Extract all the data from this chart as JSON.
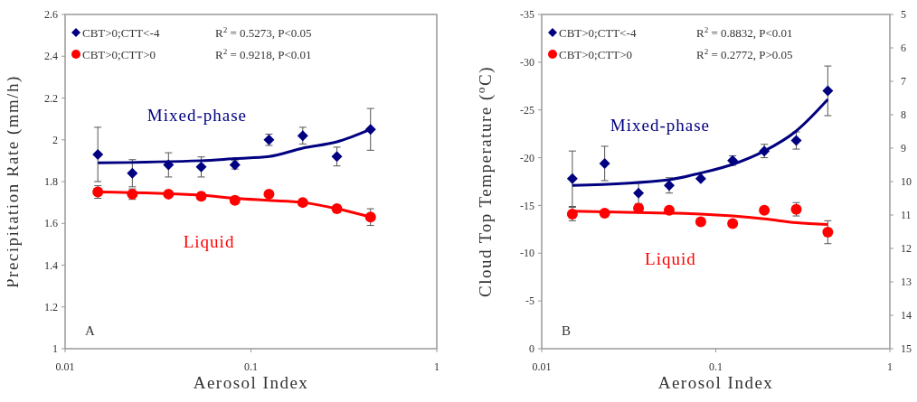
{
  "chart_data": [
    {
      "type": "scatter",
      "xlabel": "Aerosol Index",
      "ylabel": "Precipitation Rate (mm/h)",
      "log": "x",
      "xlim": [
        0.01,
        1
      ],
      "xticks": [
        0.01,
        0.1,
        1
      ],
      "ylim": [
        1,
        2.6
      ],
      "yticks": [
        1,
        1.2,
        1.4,
        1.6,
        1.8,
        2,
        2.2,
        2.4,
        2.6
      ],
      "legend": "top left",
      "annotations": [
        "R$^{2}$ = 0.5273, P<0.05",
        "R$^{2}$ = 0.9218, P<0.01",
        "A",
        "Mixed-phase",
        "Liquid"
      ],
      "series": [
        {
          "name": "CBT>0;CTT<-4",
          "type": "scatter",
          "marker": "diamond",
          "color": "#000080",
          "x": [
            0.015,
            0.023,
            0.036,
            0.054,
            0.082,
            0.125,
            0.19,
            0.29,
            0.44
          ],
          "values": [
            1.93,
            1.84,
            1.88,
            1.87,
            1.88,
            2.0,
            2.02,
            1.92,
            2.05
          ],
          "errors": [
            0.13,
            0.065,
            0.058,
            0.048,
            0.02,
            0.027,
            0.04,
            0.045,
            0.1
          ]
        },
        {
          "name": "CBT>0;CTT>0",
          "type": "scatter",
          "marker": "circle",
          "color": "#ff0000",
          "x": [
            0.015,
            0.023,
            0.036,
            0.054,
            0.082,
            0.125,
            0.19,
            0.29,
            0.44
          ],
          "values": [
            1.75,
            1.74,
            1.74,
            1.73,
            1.71,
            1.74,
            1.7,
            1.67,
            1.63
          ],
          "errors": [
            0.03,
            0.025,
            null,
            null,
            null,
            null,
            null,
            null,
            0.04
          ]
        },
        {
          "type": "line",
          "marker": "none",
          "color": "#000080",
          "x": [
            0.015,
            0.054,
            0.082,
            0.125,
            0.19,
            0.29,
            0.44
          ],
          "values": [
            1.89,
            1.9,
            1.91,
            1.92,
            1.96,
            1.99,
            2.05
          ]
        },
        {
          "type": "line",
          "marker": "none",
          "color": "#ff0000",
          "x": [
            0.015,
            0.054,
            0.082,
            0.125,
            0.19,
            0.29,
            0.44
          ],
          "values": [
            1.75,
            1.735,
            1.72,
            1.71,
            1.7,
            1.67,
            1.63
          ]
        }
      ]
    },
    {
      "type": "scatter",
      "xlabel": "Aerosol Index",
      "ylabel": "Cloud Top Temperature ($^{o}$C)",
      "log": "x",
      "xlim": [
        0.01,
        1
      ],
      "xticks": [
        0.01,
        0.1,
        1
      ],
      "ylim": [
        0,
        -35
      ],
      "yticks": [
        0,
        -5,
        -10,
        -15,
        -20,
        -25,
        -30,
        -35
      ],
      "y2lim": [
        15,
        5
      ],
      "y2ticks": [
        5,
        6,
        7,
        8,
        9,
        10,
        11,
        12,
        13,
        14,
        15
      ],
      "legend": "top left",
      "annotations": [
        "R$^{2}$ = 0.8832, P<0.01",
        "R$^{2}$ = 0.2772, P>0.05",
        "B",
        "Mixed-phase",
        "Liquid"
      ],
      "series": [
        {
          "name": "CBT>0;CTT<-4",
          "type": "scatter",
          "marker": "diamond",
          "color": "#000080",
          "x": [
            0.015,
            0.023,
            0.036,
            0.054,
            0.082,
            0.125,
            0.19,
            0.29,
            0.44
          ],
          "values": [
            -17.8,
            -19.4,
            -16.3,
            -17.1,
            -17.8,
            -19.7,
            -20.7,
            -21.8,
            -27.0
          ],
          "errors": [
            2.9,
            1.8,
            1.1,
            0.8,
            null,
            0.5,
            0.7,
            0.9,
            2.6
          ]
        },
        {
          "name": "CBT>0;CTT>0",
          "type": "scatter",
          "marker": "circle",
          "color": "#ff0000",
          "x": [
            0.015,
            0.023,
            0.036,
            0.054,
            0.082,
            0.125,
            0.19,
            0.29,
            0.44
          ],
          "values": [
            -14.1,
            -14.2,
            -14.7,
            -14.5,
            -13.3,
            -13.1,
            -14.5,
            -14.6,
            -12.2
          ],
          "errors": [
            0.7,
            null,
            null,
            null,
            null,
            null,
            null,
            0.7,
            1.2
          ]
        },
        {
          "type": "line",
          "marker": "none",
          "color": "#000080",
          "x": [
            0.015,
            0.054,
            0.082,
            0.125,
            0.19,
            0.29,
            0.44
          ],
          "values": [
            -17.1,
            -17.7,
            -18.4,
            -19.3,
            -20.7,
            -22.8,
            -26.1
          ]
        },
        {
          "type": "line",
          "marker": "none",
          "color": "#ff0000",
          "x": [
            0.015,
            0.054,
            0.082,
            0.125,
            0.19,
            0.29,
            0.44
          ],
          "values": [
            -14.4,
            -14.2,
            -14.1,
            -13.9,
            -13.6,
            -13.2,
            -13.0
          ]
        }
      ]
    }
  ]
}
